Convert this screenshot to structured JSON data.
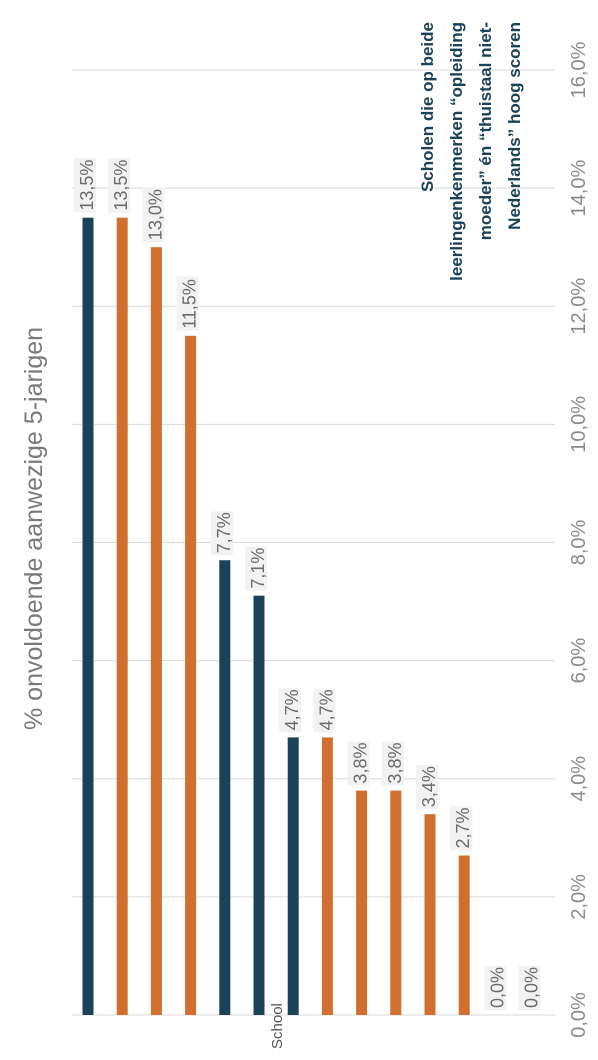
{
  "chart_data": {
    "type": "bar",
    "orientation": "horizontal",
    "title": "% onvoldoende aanwezige 5-jarigen",
    "ylabel": "School",
    "xlim": [
      0,
      16
    ],
    "xticks": [
      "0,0%",
      "2,0%",
      "4,0%",
      "6,0%",
      "8,0%",
      "10,0%",
      "12,0%",
      "14,0%",
      "16,0%"
    ],
    "grid": true,
    "values": [
      13.5,
      13.5,
      13.0,
      11.5,
      7.7,
      7.1,
      4.7,
      4.7,
      3.8,
      3.8,
      3.4,
      2.7,
      0.0,
      0.0
    ],
    "labels": [
      "13,5%",
      "13,5%",
      "13,0%",
      "11,5%",
      "7,7%",
      "7,1%",
      "4,7%",
      "4,7%",
      "3,8%",
      "3,8%",
      "3,4%",
      "2,7%",
      "0,0%",
      "0,0%"
    ],
    "highlight": [
      true,
      false,
      false,
      false,
      true,
      true,
      true,
      false,
      false,
      false,
      false,
      false,
      false,
      false
    ],
    "legend_lines": [
      "Scholen die op beide",
      "leerlingenkenmerken “opleiding",
      "moeder” én “thuistaal niet-",
      "Nederlands” hoog scoren"
    ],
    "colors": {
      "highlight": "#1b4257",
      "default": "#d06f2f",
      "legend_text": "#1b4257"
    }
  }
}
